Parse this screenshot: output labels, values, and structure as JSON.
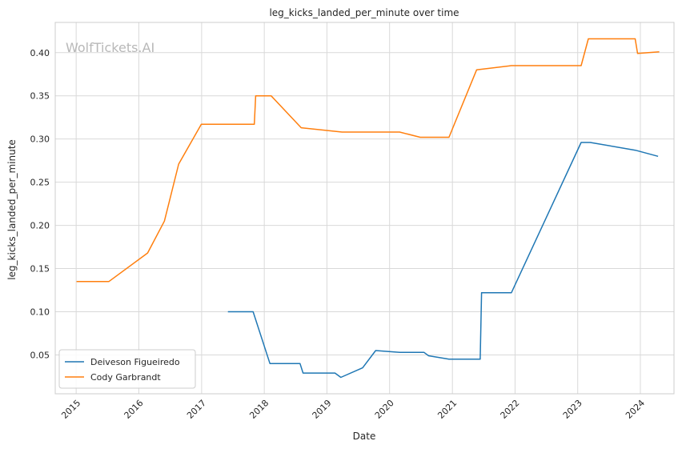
{
  "chart_data": {
    "type": "line",
    "title": "leg_kicks_landed_per_minute over time",
    "xlabel": "Date",
    "ylabel": "leg_kicks_landed_per_minute",
    "watermark": "WolfTickets.AI",
    "x_ticks": [
      "2015",
      "2016",
      "2017",
      "2018",
      "2019",
      "2020",
      "2021",
      "2022",
      "2023",
      "2024"
    ],
    "y_ticks": [
      "0.05",
      "0.10",
      "0.15",
      "0.20",
      "0.25",
      "0.30",
      "0.35",
      "0.40"
    ],
    "xlim": [
      "2014-09-01",
      "2024-07-15"
    ],
    "ylim": [
      0.005,
      0.435
    ],
    "grid": true,
    "legend_position": "bottom-left",
    "series": [
      {
        "name": "Deiveson Figueiredo",
        "color": "#1f77b4",
        "points": [
          [
            "2017-06-03",
            0.1
          ],
          [
            "2017-10-28",
            0.1
          ],
          [
            "2018-02-03",
            0.04
          ],
          [
            "2018-07-28",
            0.04
          ],
          [
            "2018-08-15",
            0.029
          ],
          [
            "2019-02-17",
            0.029
          ],
          [
            "2019-03-23",
            0.024
          ],
          [
            "2019-07-28",
            0.035
          ],
          [
            "2019-10-12",
            0.055
          ],
          [
            "2020-02-29",
            0.053
          ],
          [
            "2020-07-19",
            0.053
          ],
          [
            "2020-08-15",
            0.049
          ],
          [
            "2020-12-12",
            0.045
          ],
          [
            "2021-06-12",
            0.045
          ],
          [
            "2021-06-20",
            0.122
          ],
          [
            "2021-12-11",
            0.122
          ],
          [
            "2023-01-21",
            0.296
          ],
          [
            "2023-03-15",
            0.296
          ],
          [
            "2023-12-03",
            0.287
          ],
          [
            "2024-04-13",
            0.28
          ]
        ]
      },
      {
        "name": "Cody Garbrandt",
        "color": "#ff7f0e",
        "points": [
          [
            "2015-01-03",
            0.135
          ],
          [
            "2015-07-11",
            0.135
          ],
          [
            "2016-02-21",
            0.168
          ],
          [
            "2016-05-29",
            0.205
          ],
          [
            "2016-08-20",
            0.271
          ],
          [
            "2016-12-30",
            0.317
          ],
          [
            "2017-11-04",
            0.317
          ],
          [
            "2017-11-12",
            0.35
          ],
          [
            "2018-02-10",
            0.35
          ],
          [
            "2018-08-04",
            0.313
          ],
          [
            "2019-03-30",
            0.308
          ],
          [
            "2020-02-29",
            0.308
          ],
          [
            "2020-06-27",
            0.302
          ],
          [
            "2020-12-12",
            0.302
          ],
          [
            "2021-05-22",
            0.38
          ],
          [
            "2021-12-11",
            0.385
          ],
          [
            "2023-01-21",
            0.385
          ],
          [
            "2023-03-04",
            0.416
          ],
          [
            "2023-12-02",
            0.416
          ],
          [
            "2023-12-16",
            0.399
          ],
          [
            "2024-04-20",
            0.401
          ]
        ]
      }
    ]
  }
}
